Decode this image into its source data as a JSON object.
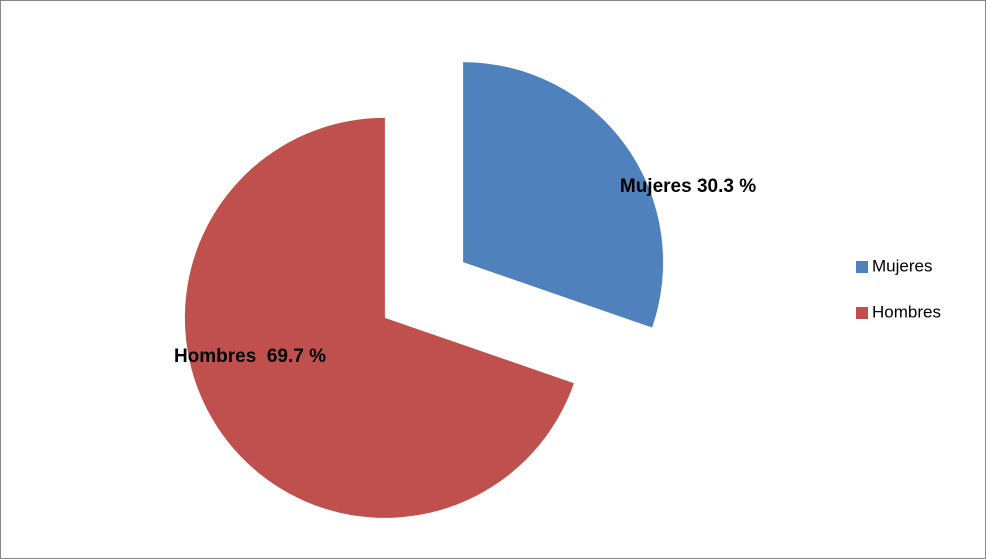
{
  "chart_data": {
    "type": "pie",
    "categories": [
      "Mujeres",
      "Hombres"
    ],
    "values": [
      30.3,
      69.7
    ],
    "value_labels": [
      "Mujeres 30.3 %",
      "Hombres  69.7 %"
    ],
    "colors": [
      "#4f81bd",
      "#c0504d"
    ],
    "legend": "right"
  }
}
